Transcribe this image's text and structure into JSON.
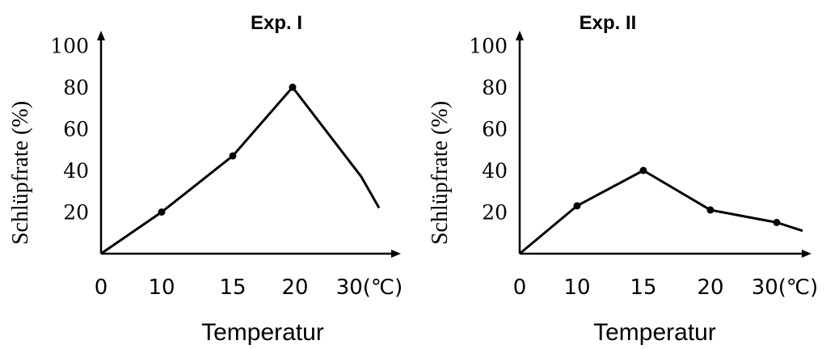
{
  "chart_data": [
    {
      "type": "line",
      "title": "Exp. I",
      "xlabel": "Temperatur",
      "ylabel": "Schlüpfrate (%)",
      "x_tick_labels": [
        "0",
        "10",
        "15",
        "20",
        "30(℃)"
      ],
      "y_tick_labels": [
        "20",
        "40",
        "60",
        "80",
        "100"
      ],
      "ylim": [
        0,
        100
      ],
      "grid": false,
      "series": [
        {
          "x": [
            0,
            10,
            15,
            20,
            28,
            30
          ],
          "y": [
            0,
            20,
            47,
            80,
            37,
            22
          ],
          "markers": [
            false,
            true,
            true,
            true,
            false,
            false
          ]
        }
      ]
    },
    {
      "type": "line",
      "title": "Exp. II",
      "xlabel": "Temperatur",
      "ylabel": "Schlüpfrate (%)",
      "x_tick_labels": [
        "0",
        "10",
        "15",
        "20",
        "30(℃)"
      ],
      "y_tick_labels": [
        "20",
        "40",
        "60",
        "80",
        "100"
      ],
      "ylim": [
        0,
        100
      ],
      "grid": false,
      "series": [
        {
          "x": [
            0,
            10,
            15,
            20,
            28,
            30
          ],
          "y": [
            0,
            23,
            40,
            21,
            15,
            11
          ],
          "markers": [
            false,
            true,
            true,
            true,
            true,
            false
          ]
        }
      ]
    }
  ]
}
